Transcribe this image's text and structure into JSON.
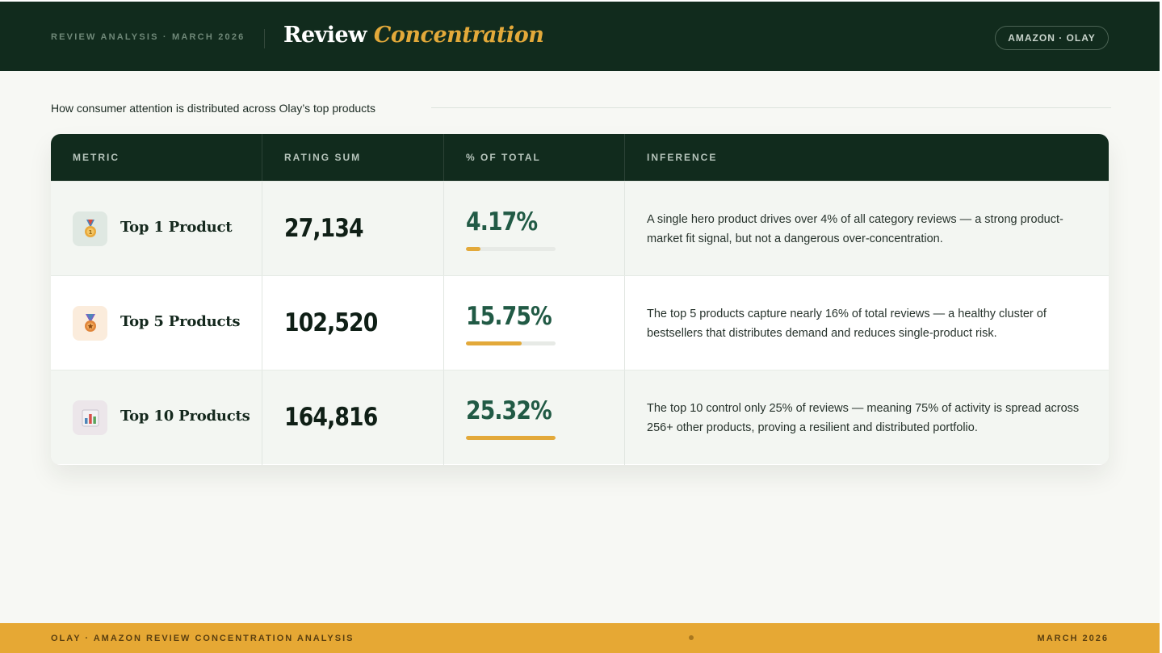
{
  "header": {
    "kicker": "REVIEW ANALYSIS · MARCH 2026",
    "title_main": "Review",
    "title_accent": "Concentration",
    "badge": "AMAZON · OLAY"
  },
  "subtitle": "How consumer attention is distributed across Olay’s top products",
  "table": {
    "columns": [
      "METRIC",
      "RATING SUM",
      "% OF TOTAL",
      "INFERENCE"
    ],
    "rows": [
      {
        "icon": "medal-icon",
        "metric": "Top 1 Product",
        "rating_sum": "27,134",
        "pct_label": "4.17%",
        "pct_value": 4.17,
        "inference": "A single hero product drives over 4% of all category reviews — a strong product-market fit signal, but not a dangerous over-concentration."
      },
      {
        "icon": "medal-ribbon-icon",
        "metric": "Top 5 Products",
        "rating_sum": "102,520",
        "pct_label": "15.75%",
        "pct_value": 15.75,
        "inference": "The top 5 products capture nearly 16% of total reviews — a healthy cluster of bestsellers that distributes demand and reduces single-product risk."
      },
      {
        "icon": "bar-chart-icon",
        "metric": "Top 10 Products",
        "rating_sum": "164,816",
        "pct_label": "25.32%",
        "pct_value": 25.32,
        "inference": "The top 10 control only 25% of reviews — meaning 75% of activity is spread across 256+ other products, proving a resilient and distributed portfolio."
      }
    ]
  },
  "footer": {
    "left": "OLAY · AMAZON REVIEW CONCENTRATION ANALYSIS",
    "right": "MARCH 2026"
  },
  "colors": {
    "dark_green": "#112b1d",
    "gold": "#e3a93a",
    "pct_green": "#215a45"
  }
}
